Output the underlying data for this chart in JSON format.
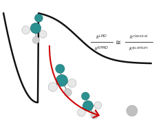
{
  "bg_color": "#ffffff",
  "curve_color": "#111111",
  "arrow_color": "#cc0000",
  "teal": "#2a9090",
  "gray": "#b8b8b8",
  "white_gray": "#e0e0e0",
  "bond_color": "#999999",
  "figsize": [
    2.27,
    1.89
  ],
  "dpi": 100,
  "formula": {
    "k_rpmd": "k^{RPMD}",
    "k_lmd": "k^{LMD}",
    "approx": "\\cong",
    "k_quantum": "k^{quantum}",
    "k_classical": "k^{classical}"
  }
}
